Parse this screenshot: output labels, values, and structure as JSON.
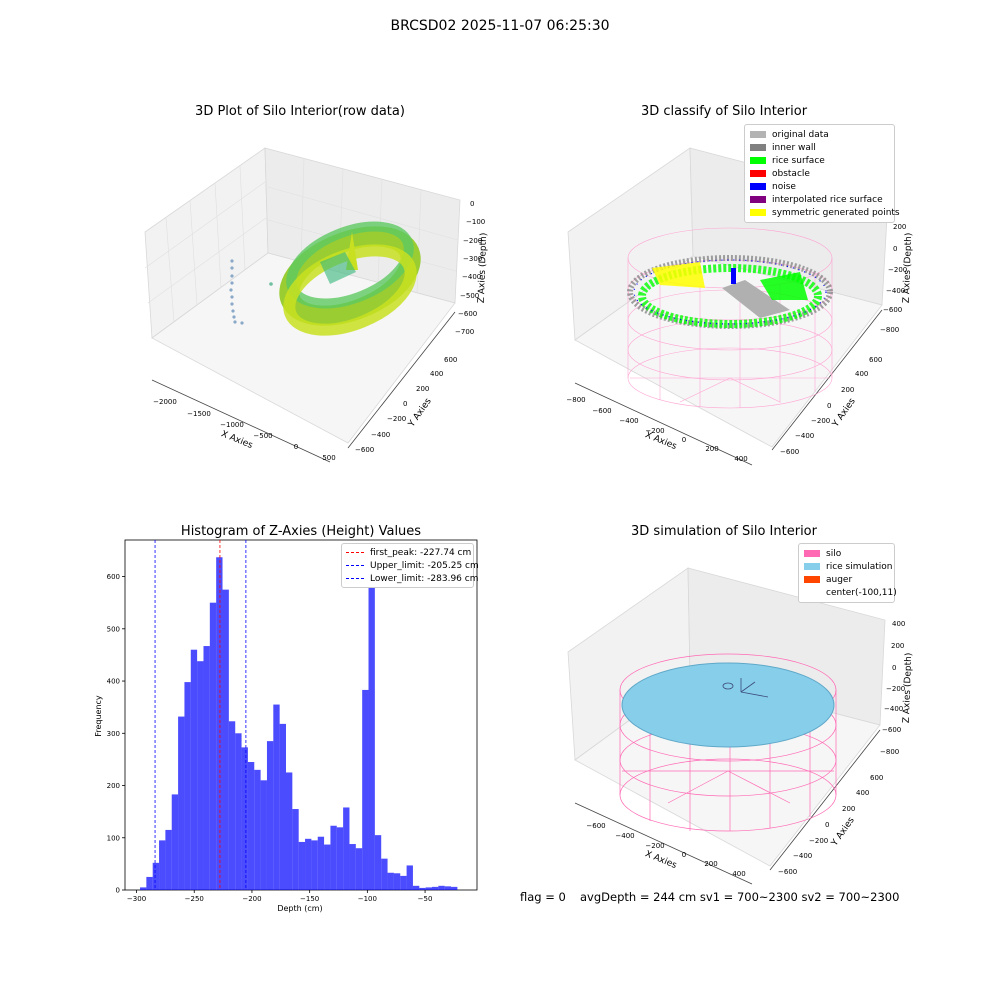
{
  "figure": {
    "suptitle": "BRCSD02 2025-11-07 06:25:30"
  },
  "chart_data": [
    {
      "type": "scatter3d",
      "title": "3D Plot of Silo Interior(row data)",
      "xlabel": "X Axies",
      "ylabel": "Y Axies",
      "zlabel": "Z Axies (Depth)",
      "x_ticks": [
        "−2000",
        "−1500",
        "−1000",
        "−500",
        "0",
        "500"
      ],
      "y_ticks": [
        "−600",
        "−400",
        "−200",
        "0",
        "200",
        "400",
        "600"
      ],
      "z_ticks": [
        "0",
        "−100",
        "−200",
        "−300",
        "−400",
        "−500",
        "−600",
        "−700"
      ],
      "colormap": "viridis"
    },
    {
      "type": "scatter3d",
      "title": "3D classify of Silo Interior",
      "xlabel": "X Axies",
      "ylabel": "Y Axies",
      "zlabel": "Z Axies (Depth)",
      "x_ticks": [
        "−800",
        "−600",
        "−400",
        "−200",
        "0",
        "200",
        "400"
      ],
      "y_ticks": [
        "−600",
        "−400",
        "−200",
        "0",
        "200",
        "400",
        "600"
      ],
      "z_ticks": [
        "200",
        "0",
        "−200",
        "−400",
        "−600",
        "−800"
      ],
      "legend": [
        {
          "label": "original data",
          "color": "#b3b3b3"
        },
        {
          "label": "inner wall",
          "color": "#808080"
        },
        {
          "label": "rice surface",
          "color": "#00ff00"
        },
        {
          "label": "obstacle",
          "color": "#ff0000"
        },
        {
          "label": "noise",
          "color": "#0000ff"
        },
        {
          "label": "interpolated rice surface",
          "color": "#800080"
        },
        {
          "label": "symmetric generated points",
          "color": "#ffff00"
        }
      ]
    },
    {
      "type": "bar",
      "title": "Histogram of Z-Axies (Height) Values",
      "xlabel": "Depth (cm)",
      "ylabel": "Frequency",
      "xlim": [
        -310,
        -5
      ],
      "ylim": [
        0,
        670
      ],
      "x_ticks": [
        -300,
        -250,
        -200,
        -150,
        -100,
        -50
      ],
      "y_ticks": [
        0,
        100,
        200,
        300,
        400,
        500,
        600
      ],
      "bin_width": 5.5,
      "bin_start": -297,
      "values": [
        5,
        25,
        52,
        95,
        115,
        183,
        332,
        398,
        460,
        438,
        467,
        550,
        637,
        575,
        323,
        300,
        273,
        245,
        230,
        210,
        285,
        355,
        318,
        225,
        155,
        92,
        98,
        95,
        102,
        87,
        123,
        120,
        158,
        88,
        80,
        383,
        590,
        105,
        60,
        33,
        32,
        27,
        47,
        8,
        4,
        5,
        6,
        8,
        7,
        6
      ],
      "color": "#0000ff",
      "vlines": [
        {
          "label": "first_peak: -227.74 cm",
          "value": -227.74,
          "color": "#ff0000"
        },
        {
          "label": "Upper_limit: -205.25 cm",
          "value": -205.25,
          "color": "#0000ff"
        },
        {
          "label": "Lower_limit: -283.96 cm",
          "value": -283.96,
          "color": "#0000ff"
        }
      ]
    },
    {
      "type": "surface3d",
      "title": "3D simulation of Silo Interior",
      "xlabel": "X Axies",
      "ylabel": "Y Axies",
      "zlabel": "Z Axies (Depth)",
      "x_ticks": [
        "−600",
        "−400",
        "−200",
        "0",
        "200",
        "400"
      ],
      "y_ticks": [
        "−600",
        "−400",
        "−200",
        "0",
        "200",
        "400",
        "600"
      ],
      "z_ticks": [
        "400",
        "200",
        "0",
        "−200",
        "−400",
        "−600",
        "−800"
      ],
      "legend": [
        {
          "label": "silo",
          "color": "#ff69b4"
        },
        {
          "label": "rice simulation",
          "color": "#87ceeb"
        },
        {
          "label": "auger",
          "color": "#ff4500"
        },
        {
          "label": "center(-100,11)",
          "color": ""
        }
      ]
    }
  ],
  "footer": {
    "flag": "flag = 0",
    "avg": "avgDepth = 244 cm  sv1 = 700~2300  sv2 = 700~2300"
  }
}
